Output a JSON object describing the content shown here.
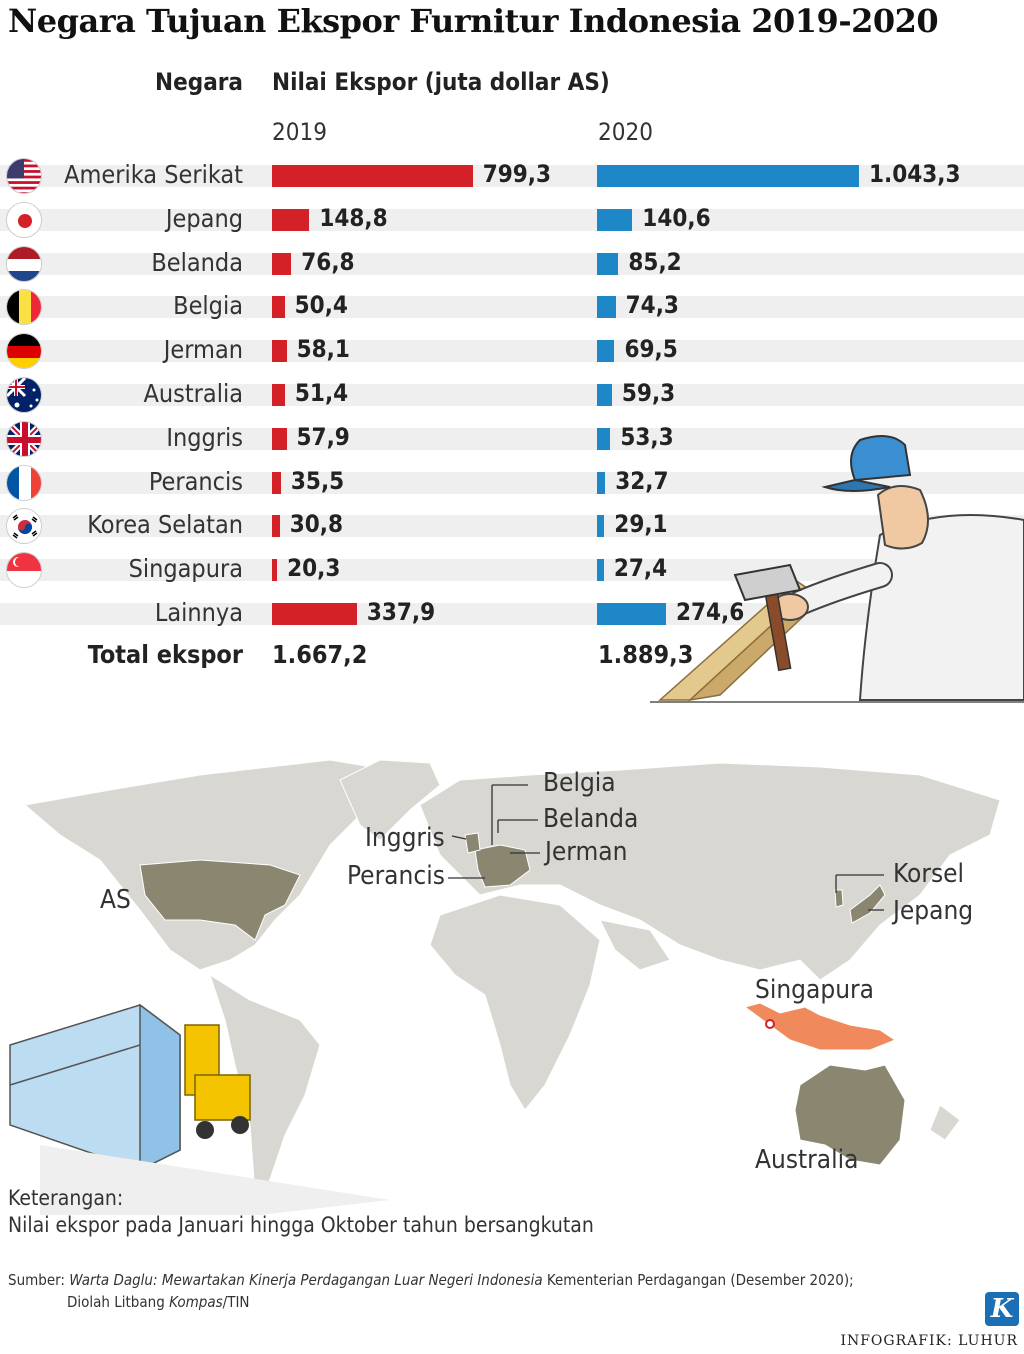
{
  "title": "Negara Tujuan Ekspor Furnitur Indonesia 2019-2020",
  "header": {
    "negara": "Negara",
    "nilai": "Nilai Ekspor (juta dollar AS)"
  },
  "chart_data": {
    "type": "bar",
    "title": "Negara Tujuan Ekspor Furnitur Indonesia 2019-2020",
    "ylabel": "Nilai Ekspor (juta dollar AS)",
    "categories": [
      "Amerika Serikat",
      "Jepang",
      "Belanda",
      "Belgia",
      "Jerman",
      "Australia",
      "Inggris",
      "Perancis",
      "Korea Selatan",
      "Singapura",
      "Lainnya"
    ],
    "series": [
      {
        "name": "2019",
        "color": "#d42027",
        "values": [
          799.3,
          148.8,
          76.8,
          50.4,
          58.1,
          51.4,
          57.9,
          35.5,
          30.8,
          20.3,
          337.9
        ],
        "labels": [
          "799,3",
          "148,8",
          "76,8",
          "50,4",
          "58,1",
          "51,4",
          "57,9",
          "35,5",
          "30,8",
          "20,3",
          "337,9"
        ]
      },
      {
        "name": "2020",
        "color": "#1e87c8",
        "values": [
          1043.3,
          140.6,
          85.2,
          74.3,
          69.5,
          59.3,
          53.3,
          32.7,
          29.1,
          27.4,
          274.6
        ],
        "labels": [
          "1.043,3",
          "140,6",
          "85,2",
          "74,3",
          "69,5",
          "59,3",
          "53,3",
          "32,7",
          "29,1",
          "27,4",
          "274,6"
        ]
      }
    ],
    "totals": {
      "label": "Total ekspor",
      "2019": "1.667,2",
      "2020": "1.889,3"
    },
    "flags": [
      "us",
      "jp",
      "nl",
      "be",
      "de",
      "au",
      "gb",
      "fr",
      "kr",
      "sg"
    ]
  },
  "map": {
    "labels": {
      "as": "AS",
      "inggris": "Inggris",
      "perancis": "Perancis",
      "belgia": "Belgia",
      "belanda": "Belanda",
      "jerman": "Jerman",
      "korsel": "Korsel",
      "jepang": "Jepang",
      "singapura": "Singapura",
      "australia": "Australia"
    },
    "colors": {
      "land": "#d9d7d2",
      "highlight": "#8a8670",
      "indonesia": "#f08a5d"
    }
  },
  "notes": {
    "heading": "Keterangan:",
    "text": "Nilai ekspor pada Januari hingga Oktober tahun bersangkutan"
  },
  "source": {
    "prefix": "Sumber: ",
    "italic": "Warta Daglu: Mewartakan Kinerja Perdagangan Luar Negeri Indonesia",
    "suffix": " Kementerian Perdagangan (Desember 2020);",
    "line2_prefix": "Diolah Litbang ",
    "line2_italic": "Kompas",
    "line2_suffix": "/TIN"
  },
  "credit": "INFOGRAFIK: LUHUR",
  "logo": "K"
}
